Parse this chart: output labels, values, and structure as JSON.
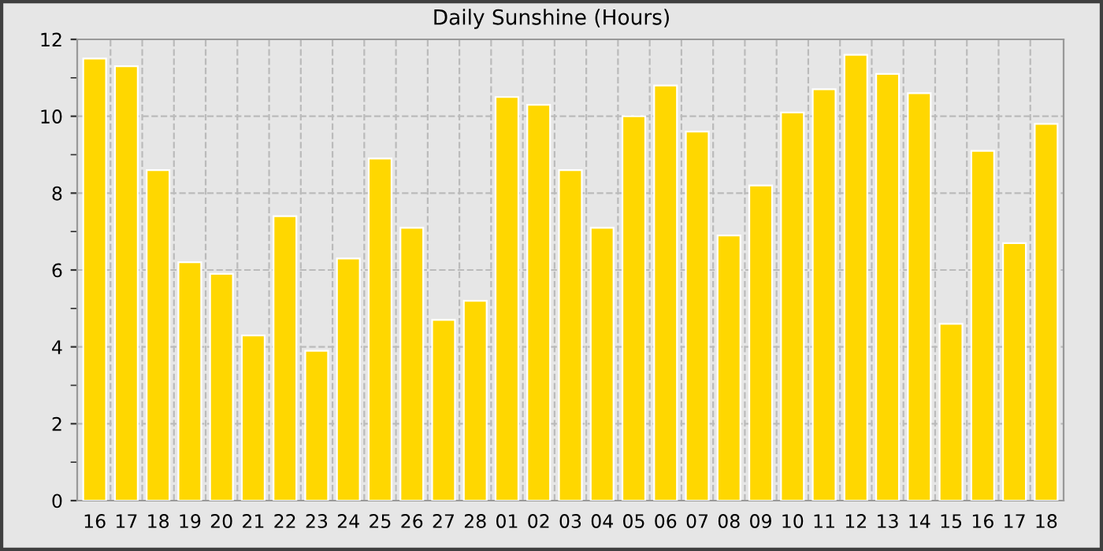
{
  "chart_data": {
    "type": "bar",
    "title": "Daily Sunshine (Hours)",
    "categories": [
      "16",
      "17",
      "18",
      "19",
      "20",
      "21",
      "22",
      "23",
      "24",
      "25",
      "26",
      "27",
      "28",
      "01",
      "02",
      "03",
      "04",
      "05",
      "06",
      "07",
      "08",
      "09",
      "10",
      "11",
      "12",
      "13",
      "14",
      "15",
      "16",
      "17",
      "18"
    ],
    "values": [
      11.5,
      11.3,
      8.6,
      6.2,
      5.9,
      4.3,
      7.4,
      3.9,
      6.3,
      8.9,
      7.1,
      4.7,
      5.2,
      10.5,
      10.3,
      8.6,
      7.1,
      10.0,
      10.8,
      9.6,
      6.9,
      8.2,
      10.1,
      10.7,
      11.6,
      11.1,
      10.6,
      4.6,
      9.1,
      6.7,
      9.8
    ],
    "color": "#ffd700",
    "ylim": [
      0,
      12
    ],
    "yticks": [
      0,
      {
        "value": 1,
        "label": null
      },
      2,
      {
        "value": 3,
        "label": null
      },
      4,
      {
        "value": 5,
        "label": null
      },
      6,
      {
        "value": 7,
        "label": null
      },
      8,
      {
        "value": 9,
        "label": null
      },
      10,
      {
        "value": 11,
        "label": null
      },
      12
    ],
    "grid": true
  }
}
